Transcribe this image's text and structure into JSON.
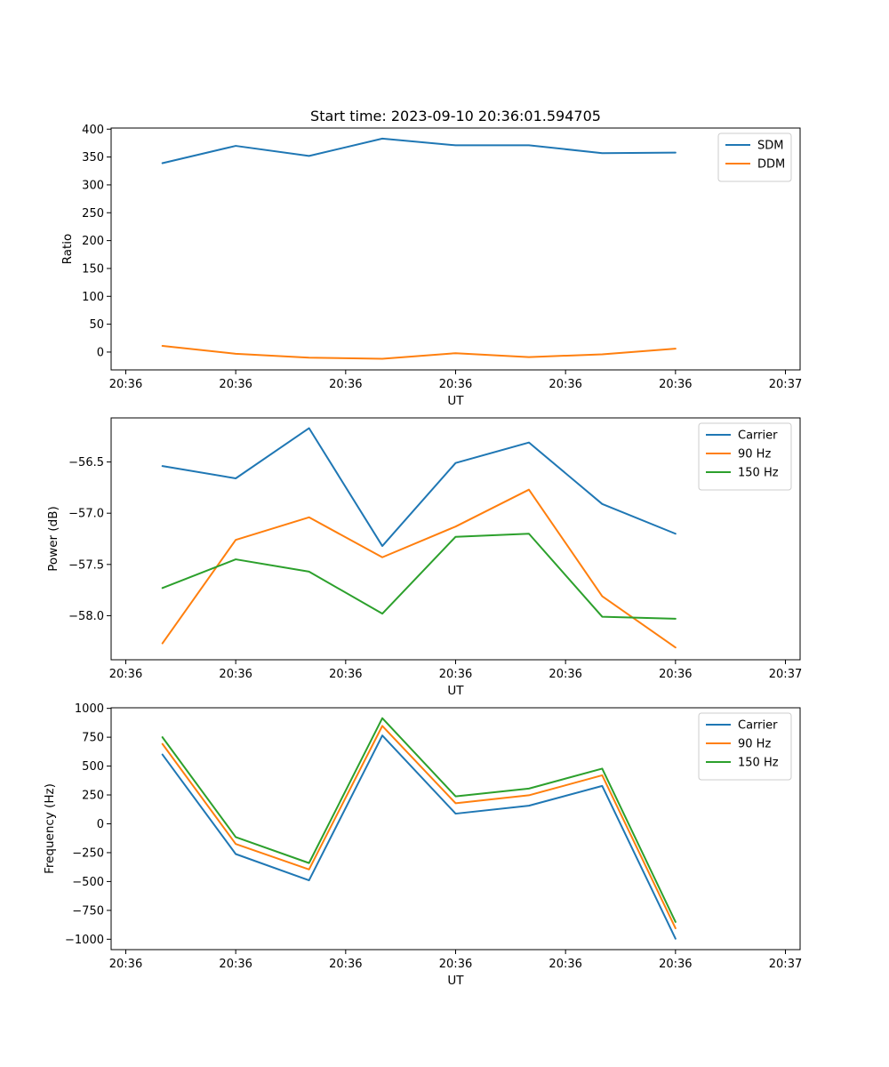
{
  "figure_title": "Start time: 2023-09-10 20:36:01.594705",
  "chart_data": [
    {
      "type": "line",
      "title": "Start time: 2023-09-10 20:36:01.594705",
      "xlabel": "UT",
      "ylabel": "Ratio",
      "x": [
        1,
        2,
        3,
        4,
        5,
        6,
        7,
        8
      ],
      "xlim": [
        0.3,
        9.7
      ],
      "x_ticks": [
        0.5,
        2.0,
        3.5,
        5.0,
        6.5,
        8.0,
        9.5
      ],
      "x_tick_labels": [
        "20:36",
        "20:36",
        "20:36",
        "20:36",
        "20:36",
        "20:36",
        "20:37"
      ],
      "ylim": [
        -32,
        402
      ],
      "y_ticks": [
        0,
        50,
        100,
        150,
        200,
        250,
        300,
        350,
        400
      ],
      "y_tick_labels": [
        "0",
        "50",
        "100",
        "150",
        "200",
        "250",
        "300",
        "350",
        "400"
      ],
      "legend_position": "top-right",
      "series": [
        {
          "name": "SDM",
          "color": "#1f77b4",
          "values": [
            339,
            370,
            352,
            383,
            371,
            371,
            357,
            358
          ]
        },
        {
          "name": "DDM",
          "color": "#ff7f0e",
          "values": [
            11,
            -3,
            -10,
            -12,
            -2,
            -9,
            -4,
            6
          ]
        }
      ]
    },
    {
      "type": "line",
      "title": "",
      "xlabel": "UT",
      "ylabel": "Power (dB)",
      "x": [
        1,
        2,
        3,
        4,
        5,
        6,
        7,
        8
      ],
      "xlim": [
        0.3,
        9.7
      ],
      "x_ticks": [
        0.5,
        2.0,
        3.5,
        5.0,
        6.5,
        8.0,
        9.5
      ],
      "x_tick_labels": [
        "20:36",
        "20:36",
        "20:36",
        "20:36",
        "20:36",
        "20:36",
        "20:37"
      ],
      "ylim": [
        -58.43,
        -56.07
      ],
      "y_ticks": [
        -58.0,
        -57.5,
        -57.0,
        -56.5
      ],
      "y_tick_labels": [
        "−58.0",
        "−57.5",
        "−57.0",
        "−56.5"
      ],
      "legend_position": "top-right",
      "series": [
        {
          "name": "Carrier",
          "color": "#1f77b4",
          "values": [
            -56.54,
            -56.66,
            -56.17,
            -57.32,
            -56.51,
            -56.31,
            -56.91,
            -57.2
          ]
        },
        {
          "name": "90 Hz",
          "color": "#ff7f0e",
          "values": [
            -58.27,
            -57.26,
            -57.04,
            -57.43,
            -57.13,
            -56.77,
            -57.81,
            -58.31
          ]
        },
        {
          "name": "150 Hz",
          "color": "#2ca02c",
          "values": [
            -57.73,
            -57.45,
            -57.57,
            -57.98,
            -57.23,
            -57.2,
            -58.01,
            -58.03
          ]
        }
      ]
    },
    {
      "type": "line",
      "title": "",
      "xlabel": "UT",
      "ylabel": "Frequency (Hz)",
      "x": [
        1,
        2,
        3,
        4,
        5,
        6,
        7,
        8
      ],
      "xlim": [
        0.3,
        9.7
      ],
      "x_ticks": [
        0.5,
        2.0,
        3.5,
        5.0,
        6.5,
        8.0,
        9.5
      ],
      "x_tick_labels": [
        "20:36",
        "20:36",
        "20:36",
        "20:36",
        "20:36",
        "20:36",
        "20:37"
      ],
      "ylim": [
        -1090,
        1005
      ],
      "y_ticks": [
        -1000,
        -750,
        -500,
        -250,
        0,
        250,
        500,
        750,
        1000
      ],
      "y_tick_labels": [
        "−1000",
        "−750",
        "−500",
        "−250",
        "0",
        "250",
        "500",
        "750",
        "1000"
      ],
      "legend_position": "top-right",
      "series": [
        {
          "name": "Carrier",
          "color": "#1f77b4",
          "values": [
            600,
            -262,
            -490,
            765,
            88,
            157,
            328,
            -995
          ]
        },
        {
          "name": "90 Hz",
          "color": "#ff7f0e",
          "values": [
            692,
            -175,
            -395,
            848,
            178,
            247,
            420,
            -905
          ]
        },
        {
          "name": "150 Hz",
          "color": "#2ca02c",
          "values": [
            750,
            -115,
            -340,
            915,
            238,
            305,
            478,
            -850
          ]
        }
      ]
    }
  ]
}
